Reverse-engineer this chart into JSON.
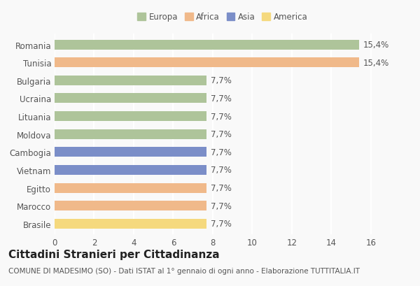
{
  "categories": [
    "Romania",
    "Tunisia",
    "Bulgaria",
    "Ucraina",
    "Lituania",
    "Moldova",
    "Cambogia",
    "Vietnam",
    "Egitto",
    "Marocco",
    "Brasile"
  ],
  "values": [
    15.4,
    15.4,
    7.7,
    7.7,
    7.7,
    7.7,
    7.7,
    7.7,
    7.7,
    7.7,
    7.7
  ],
  "bar_colors": [
    "#aec49a",
    "#f0b98a",
    "#aec49a",
    "#aec49a",
    "#aec49a",
    "#aec49a",
    "#7b8ec8",
    "#7b8ec8",
    "#f0b98a",
    "#f0b98a",
    "#f5d97e"
  ],
  "labels": [
    "15,4%",
    "15,4%",
    "7,7%",
    "7,7%",
    "7,7%",
    "7,7%",
    "7,7%",
    "7,7%",
    "7,7%",
    "7,7%",
    "7,7%"
  ],
  "legend_labels": [
    "Europa",
    "Africa",
    "Asia",
    "America"
  ],
  "legend_colors": [
    "#aec49a",
    "#f0b98a",
    "#7b8ec8",
    "#f5d97e"
  ],
  "xlim": [
    0,
    17
  ],
  "xticks": [
    0,
    2,
    4,
    6,
    8,
    10,
    12,
    14,
    16
  ],
  "title": "Cittadini Stranieri per Cittadinanza",
  "subtitle": "COMUNE DI MADESIMO (SO) - Dati ISTAT al 1° gennaio di ogni anno - Elaborazione TUTTITALIA.IT",
  "background_color": "#f9f9f9",
  "bar_height": 0.55,
  "grid_color": "#ffffff",
  "tick_label_color": "#555555",
  "label_fontsize": 8.5,
  "title_fontsize": 11,
  "subtitle_fontsize": 7.5
}
